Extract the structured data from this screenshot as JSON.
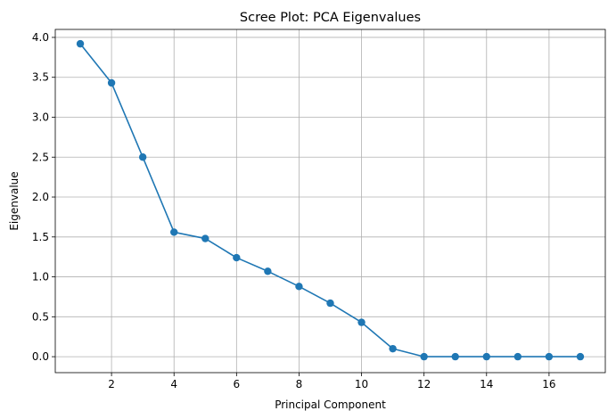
{
  "chart_data": {
    "type": "line",
    "title": "Scree Plot: PCA Eigenvalues",
    "xlabel": "Principal Component",
    "ylabel": "Eigenvalue",
    "xlim": [
      0.2,
      17.8
    ],
    "ylim": [
      -0.2,
      4.1
    ],
    "xticks": [
      2,
      4,
      6,
      8,
      10,
      12,
      14,
      16
    ],
    "yticks": [
      0.0,
      0.5,
      1.0,
      1.5,
      2.0,
      2.5,
      3.0,
      3.5,
      4.0
    ],
    "ytick_labels": [
      "0.0",
      "0.5",
      "1.0",
      "1.5",
      "2.0",
      "2.5",
      "3.0",
      "3.5",
      "4.0"
    ],
    "grid": true,
    "legend": "none",
    "series": [
      {
        "color": "#1f77b4",
        "marker": "circle",
        "x": [
          1,
          2,
          3,
          4,
          5,
          6,
          7,
          8,
          9,
          10,
          11,
          12,
          13,
          14,
          15,
          16,
          17
        ],
        "values": [
          3.92,
          3.43,
          2.5,
          1.56,
          1.48,
          1.24,
          1.07,
          0.88,
          0.67,
          0.43,
          0.1,
          0.0,
          0.0,
          0.0,
          0.0,
          0.0,
          0.0
        ]
      }
    ]
  }
}
